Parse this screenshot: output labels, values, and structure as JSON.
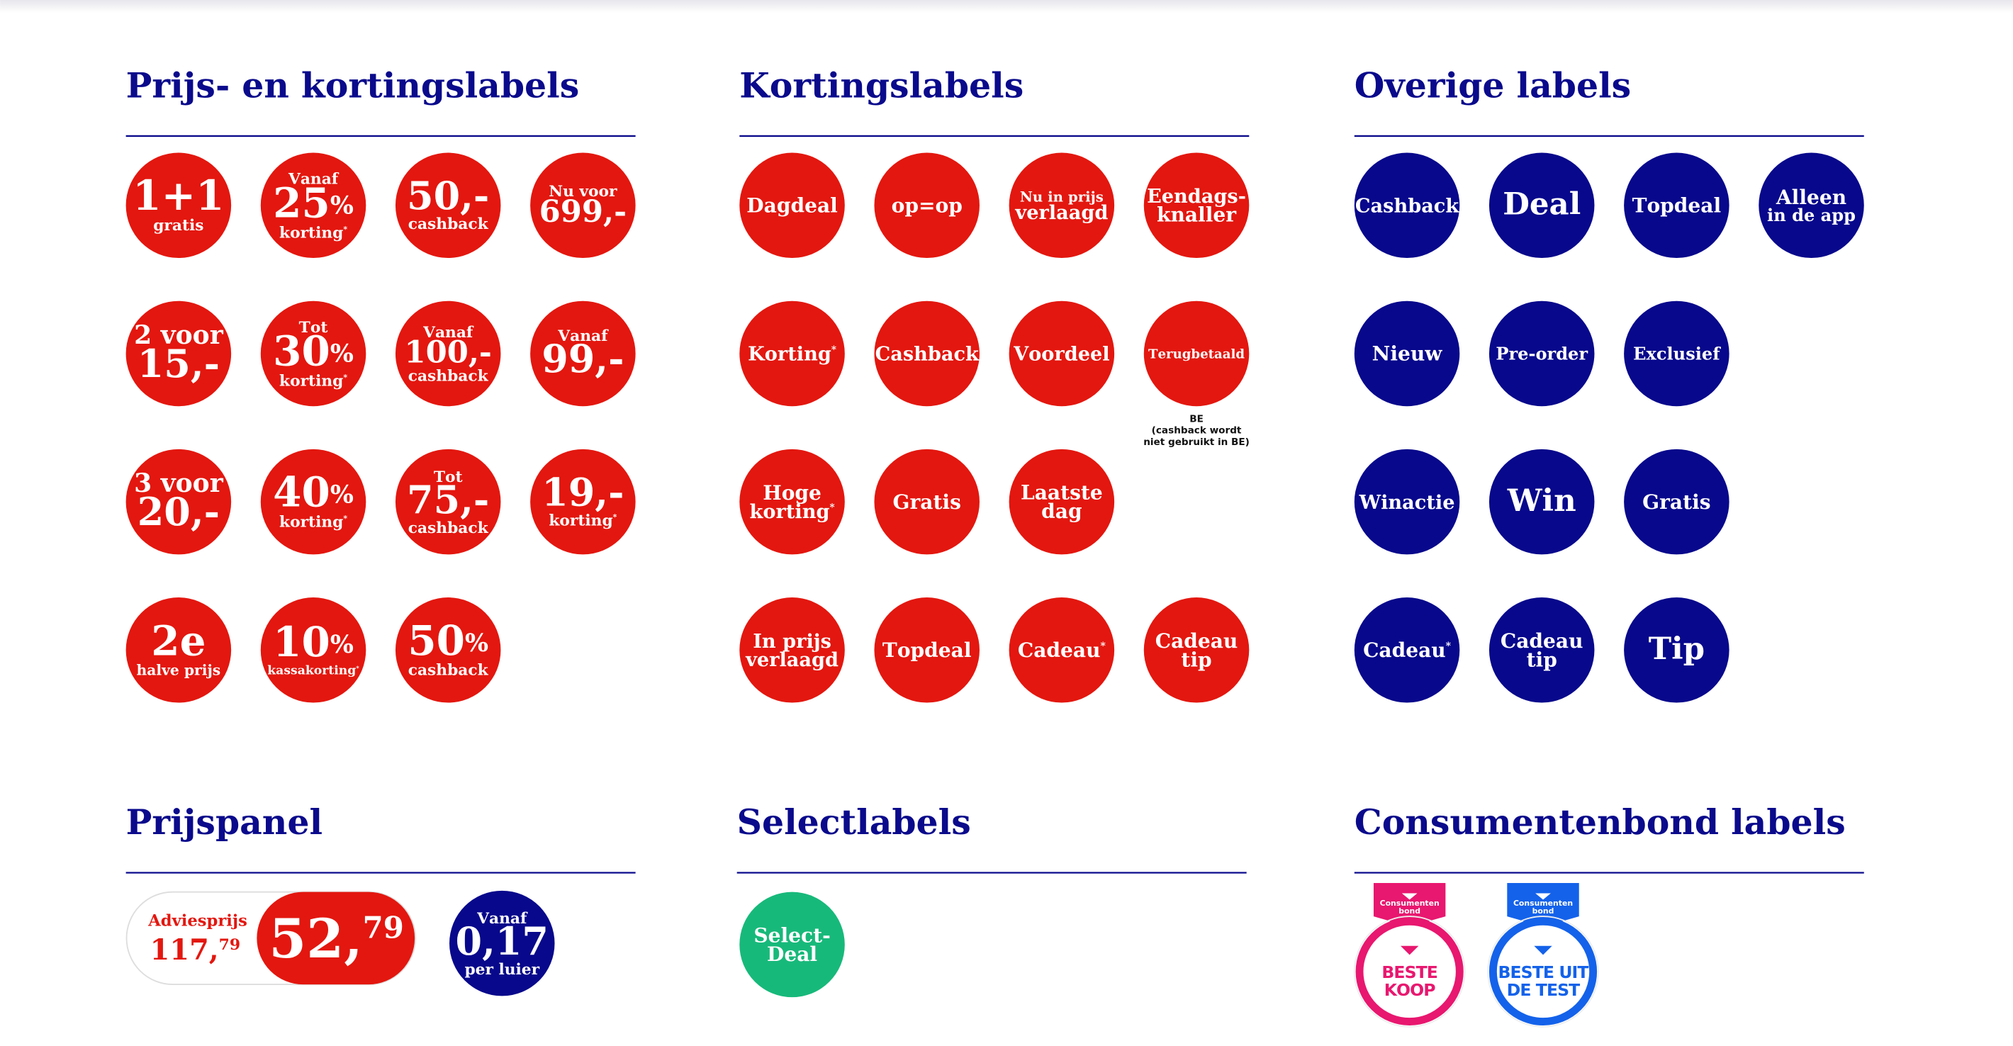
{
  "sections": [
    {
      "title": "Prijs- en kortingslabels",
      "rows": [
        [
          {
            "lines": [
              "1+1",
              "gratis"
            ]
          },
          {
            "lines": [
              "Vanaf",
              "25%",
              "korting*"
            ]
          },
          {
            "lines": [
              "50,-",
              "cashback"
            ]
          },
          {
            "lines": [
              "Nu voor",
              "699,-"
            ]
          }
        ],
        [
          {
            "lines": [
              "2 voor",
              "15,-"
            ]
          },
          {
            "lines": [
              "Tot",
              "30%",
              "korting*"
            ]
          },
          {
            "lines": [
              "Vanaf",
              "100,-",
              "cashback"
            ]
          },
          {
            "lines": [
              "Vanaf",
              "99,-"
            ]
          }
        ],
        [
          {
            "lines": [
              "3 voor",
              "20,-"
            ]
          },
          {
            "lines": [
              "40%",
              "korting*"
            ]
          },
          {
            "lines": [
              "Tot",
              "75,-",
              "cashback"
            ]
          },
          {
            "lines": [
              "19,-",
              "korting*"
            ]
          }
        ],
        [
          {
            "lines": [
              "2e",
              "halve prijs"
            ]
          },
          {
            "lines": [
              "10%",
              "kassakorting*"
            ]
          },
          {
            "lines": [
              "50%",
              "cashback"
            ]
          }
        ]
      ]
    },
    {
      "title": "Kortingslabels",
      "rows": [
        [
          {
            "lines": [
              "Dagdeal"
            ]
          },
          {
            "lines": [
              "op=op"
            ]
          },
          {
            "lines": [
              "Nu in prijs",
              "verlaagd"
            ]
          },
          {
            "lines": [
              "Eendags-",
              "knaller"
            ]
          }
        ],
        [
          {
            "lines": [
              "Korting*"
            ]
          },
          {
            "lines": [
              "Cashback"
            ]
          },
          {
            "lines": [
              "Voordeel"
            ]
          },
          {
            "lines": [
              "Terugbetaald"
            ],
            "note": [
              "BE",
              "(cashback wordt",
              "niet gebruikt in BE)"
            ]
          }
        ],
        [
          {
            "lines": [
              "Hoge",
              "korting*"
            ]
          },
          {
            "lines": [
              "Gratis"
            ]
          },
          {
            "lines": [
              "Laatste",
              "dag"
            ]
          }
        ],
        [
          {
            "lines": [
              "In prijs",
              "verlaagd"
            ]
          },
          {
            "lines": [
              "Topdeal"
            ]
          },
          {
            "lines": [
              "Cadeau*"
            ]
          },
          {
            "lines": [
              "Cadeau",
              "tip"
            ]
          }
        ]
      ]
    },
    {
      "title": "Overige labels",
      "rows": [
        [
          {
            "lines": [
              "Cashback"
            ]
          },
          {
            "lines": [
              "Deal"
            ]
          },
          {
            "lines": [
              "Topdeal"
            ]
          },
          {
            "lines": [
              "Alleen",
              "in de app"
            ]
          }
        ],
        [
          {
            "lines": [
              "Nieuw"
            ]
          },
          {
            "lines": [
              "Pre-order"
            ]
          },
          {
            "lines": [
              "Exclusief"
            ]
          }
        ],
        [
          {
            "lines": [
              "Winactie"
            ]
          },
          {
            "lines": [
              "Win"
            ]
          },
          {
            "lines": [
              "Gratis"
            ]
          }
        ],
        [
          {
            "lines": [
              "Cadeau*"
            ]
          },
          {
            "lines": [
              "Cadeau",
              "tip"
            ]
          },
          {
            "lines": [
              "Tip"
            ]
          }
        ]
      ]
    }
  ],
  "prijspanel": {
    "title": "Prijspanel",
    "label": "Adviesprijs",
    "old": "117,79",
    "price": "52,79",
    "unit": {
      "lines": [
        "Vanaf",
        "0,17",
        "per luier"
      ]
    }
  },
  "selectlabels": {
    "title": "Selectlabels",
    "label": {
      "lines": [
        "Select-",
        "Deal"
      ]
    }
  },
  "consumentenbond": {
    "title": "Consumentenbond labels",
    "badges": [
      {
        "top": [
          "Consumenten",
          "bond"
        ],
        "lines": [
          "BESTE",
          "KOOP"
        ]
      },
      {
        "top": [
          "Consumenten",
          "bond"
        ],
        "lines": [
          "BESTE UIT",
          "DE TEST"
        ]
      }
    ]
  }
}
